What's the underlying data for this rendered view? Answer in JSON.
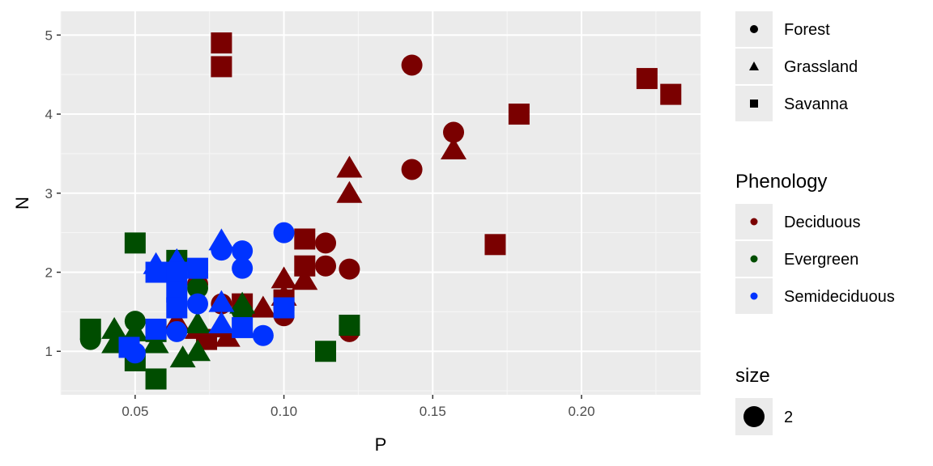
{
  "chart_data": {
    "type": "scatter",
    "xlabel": "P",
    "ylabel": "N",
    "xlim": [
      0.025,
      0.24
    ],
    "ylim": [
      0.45,
      5.3
    ],
    "x_ticks": [
      0.05,
      0.1,
      0.15,
      0.2
    ],
    "x_tick_labels": [
      "0.05",
      "0.10",
      "0.15",
      "0.20"
    ],
    "y_ticks": [
      1,
      2,
      3,
      4,
      5
    ],
    "y_tick_labels": [
      "1",
      "2",
      "3",
      "4",
      "5"
    ],
    "grid": true,
    "legend_placement": "right",
    "colors": {
      "Deciduous": "#7a0000",
      "Evergreen": "#004d00",
      "Semideciduous": "#0033ff",
      "panel": "#ebebeb",
      "grid": "#ffffff"
    },
    "legends": [
      {
        "title": "",
        "kind": "shape",
        "entries": [
          {
            "label": "Forest",
            "shape": "circle"
          },
          {
            "label": "Grassland",
            "shape": "triangle"
          },
          {
            "label": "Savanna",
            "shape": "square"
          }
        ]
      },
      {
        "title": "Phenology",
        "kind": "color",
        "entries": [
          {
            "label": "Deciduous",
            "color": "#7a0000"
          },
          {
            "label": "Evergreen",
            "color": "#004d00"
          },
          {
            "label": "Semideciduous",
            "color": "#0033ff"
          }
        ]
      },
      {
        "title": "size",
        "kind": "size",
        "entries": [
          {
            "label": "2"
          }
        ]
      }
    ],
    "points": [
      {
        "x": 0.079,
        "y": 4.9,
        "shape": "square",
        "phenology": "Deciduous"
      },
      {
        "x": 0.079,
        "y": 4.6,
        "shape": "square",
        "phenology": "Deciduous"
      },
      {
        "x": 0.143,
        "y": 4.62,
        "shape": "circle",
        "phenology": "Deciduous"
      },
      {
        "x": 0.222,
        "y": 4.45,
        "shape": "square",
        "phenology": "Deciduous"
      },
      {
        "x": 0.23,
        "y": 4.25,
        "shape": "square",
        "phenology": "Deciduous"
      },
      {
        "x": 0.179,
        "y": 4.0,
        "shape": "square",
        "phenology": "Deciduous"
      },
      {
        "x": 0.157,
        "y": 3.77,
        "shape": "circle",
        "phenology": "Deciduous"
      },
      {
        "x": 0.157,
        "y": 3.55,
        "shape": "triangle",
        "phenology": "Deciduous"
      },
      {
        "x": 0.122,
        "y": 3.32,
        "shape": "triangle",
        "phenology": "Deciduous"
      },
      {
        "x": 0.143,
        "y": 3.3,
        "shape": "circle",
        "phenology": "Deciduous"
      },
      {
        "x": 0.122,
        "y": 3.0,
        "shape": "triangle",
        "phenology": "Deciduous"
      },
      {
        "x": 0.171,
        "y": 2.35,
        "shape": "square",
        "phenology": "Deciduous"
      },
      {
        "x": 0.107,
        "y": 2.42,
        "shape": "square",
        "phenology": "Deciduous"
      },
      {
        "x": 0.114,
        "y": 2.37,
        "shape": "circle",
        "phenology": "Deciduous"
      },
      {
        "x": 0.107,
        "y": 2.08,
        "shape": "square",
        "phenology": "Deciduous"
      },
      {
        "x": 0.114,
        "y": 2.08,
        "shape": "circle",
        "phenology": "Deciduous"
      },
      {
        "x": 0.122,
        "y": 2.04,
        "shape": "circle",
        "phenology": "Deciduous"
      },
      {
        "x": 0.1,
        "y": 1.92,
        "shape": "triangle",
        "phenology": "Deciduous"
      },
      {
        "x": 0.107,
        "y": 1.9,
        "shape": "triangle",
        "phenology": "Deciduous"
      },
      {
        "x": 0.1,
        "y": 1.7,
        "shape": "triangle",
        "phenology": "Deciduous"
      },
      {
        "x": 0.1,
        "y": 1.65,
        "shape": "square",
        "phenology": "Deciduous"
      },
      {
        "x": 0.093,
        "y": 1.55,
        "shape": "triangle",
        "phenology": "Deciduous"
      },
      {
        "x": 0.086,
        "y": 1.6,
        "shape": "square",
        "phenology": "Deciduous"
      },
      {
        "x": 0.079,
        "y": 1.6,
        "shape": "circle",
        "phenology": "Deciduous"
      },
      {
        "x": 0.071,
        "y": 1.85,
        "shape": "circle",
        "phenology": "Deciduous"
      },
      {
        "x": 0.064,
        "y": 1.38,
        "shape": "triangle",
        "phenology": "Deciduous"
      },
      {
        "x": 0.071,
        "y": 1.28,
        "shape": "triangle",
        "phenology": "Deciduous"
      },
      {
        "x": 0.079,
        "y": 1.3,
        "shape": "triangle",
        "phenology": "Deciduous"
      },
      {
        "x": 0.086,
        "y": 1.3,
        "shape": "triangle",
        "phenology": "Deciduous"
      },
      {
        "x": 0.074,
        "y": 1.15,
        "shape": "square",
        "phenology": "Deciduous"
      },
      {
        "x": 0.081,
        "y": 1.18,
        "shape": "triangle",
        "phenology": "Deciduous"
      },
      {
        "x": 0.1,
        "y": 1.45,
        "shape": "circle",
        "phenology": "Deciduous"
      },
      {
        "x": 0.122,
        "y": 1.25,
        "shape": "circle",
        "phenology": "Deciduous"
      },
      {
        "x": 0.05,
        "y": 2.37,
        "shape": "square",
        "phenology": "Evergreen"
      },
      {
        "x": 0.064,
        "y": 2.15,
        "shape": "square",
        "phenology": "Evergreen"
      },
      {
        "x": 0.071,
        "y": 1.8,
        "shape": "circle",
        "phenology": "Evergreen"
      },
      {
        "x": 0.086,
        "y": 1.6,
        "shape": "triangle",
        "phenology": "Evergreen"
      },
      {
        "x": 0.086,
        "y": 1.5,
        "shape": "circle",
        "phenology": "Evergreen"
      },
      {
        "x": 0.05,
        "y": 1.38,
        "shape": "circle",
        "phenology": "Evergreen"
      },
      {
        "x": 0.035,
        "y": 1.28,
        "shape": "square",
        "phenology": "Evergreen"
      },
      {
        "x": 0.043,
        "y": 1.28,
        "shape": "triangle",
        "phenology": "Evergreen"
      },
      {
        "x": 0.05,
        "y": 1.25,
        "shape": "triangle",
        "phenology": "Evergreen"
      },
      {
        "x": 0.057,
        "y": 1.25,
        "shape": "square",
        "phenology": "Evergreen"
      },
      {
        "x": 0.071,
        "y": 1.35,
        "shape": "triangle",
        "phenology": "Evergreen"
      },
      {
        "x": 0.035,
        "y": 1.15,
        "shape": "circle",
        "phenology": "Evergreen"
      },
      {
        "x": 0.043,
        "y": 1.1,
        "shape": "triangle",
        "phenology": "Evergreen"
      },
      {
        "x": 0.057,
        "y": 1.1,
        "shape": "triangle",
        "phenology": "Evergreen"
      },
      {
        "x": 0.05,
        "y": 0.88,
        "shape": "square",
        "phenology": "Evergreen"
      },
      {
        "x": 0.066,
        "y": 0.92,
        "shape": "triangle",
        "phenology": "Evergreen"
      },
      {
        "x": 0.071,
        "y": 1.0,
        "shape": "triangle",
        "phenology": "Evergreen"
      },
      {
        "x": 0.057,
        "y": 0.65,
        "shape": "square",
        "phenology": "Evergreen"
      },
      {
        "x": 0.114,
        "y": 1.0,
        "shape": "square",
        "phenology": "Evergreen"
      },
      {
        "x": 0.122,
        "y": 1.33,
        "shape": "square",
        "phenology": "Evergreen"
      },
      {
        "x": 0.1,
        "y": 2.5,
        "shape": "circle",
        "phenology": "Semideciduous"
      },
      {
        "x": 0.079,
        "y": 2.4,
        "shape": "triangle",
        "phenology": "Semideciduous"
      },
      {
        "x": 0.079,
        "y": 2.28,
        "shape": "circle",
        "phenology": "Semideciduous"
      },
      {
        "x": 0.086,
        "y": 2.27,
        "shape": "circle",
        "phenology": "Semideciduous"
      },
      {
        "x": 0.057,
        "y": 2.1,
        "shape": "triangle",
        "phenology": "Semideciduous"
      },
      {
        "x": 0.064,
        "y": 2.15,
        "shape": "triangle",
        "phenology": "Semideciduous"
      },
      {
        "x": 0.057,
        "y": 2.0,
        "shape": "square",
        "phenology": "Semideciduous"
      },
      {
        "x": 0.064,
        "y": 2.0,
        "shape": "square",
        "phenology": "Semideciduous"
      },
      {
        "x": 0.071,
        "y": 2.05,
        "shape": "square",
        "phenology": "Semideciduous"
      },
      {
        "x": 0.086,
        "y": 2.05,
        "shape": "circle",
        "phenology": "Semideciduous"
      },
      {
        "x": 0.064,
        "y": 1.75,
        "shape": "square",
        "phenology": "Semideciduous"
      },
      {
        "x": 0.064,
        "y": 1.55,
        "shape": "square",
        "phenology": "Semideciduous"
      },
      {
        "x": 0.071,
        "y": 1.6,
        "shape": "circle",
        "phenology": "Semideciduous"
      },
      {
        "x": 0.079,
        "y": 1.62,
        "shape": "triangle",
        "phenology": "Semideciduous"
      },
      {
        "x": 0.1,
        "y": 1.55,
        "shape": "square",
        "phenology": "Semideciduous"
      },
      {
        "x": 0.057,
        "y": 1.28,
        "shape": "square",
        "phenology": "Semideciduous"
      },
      {
        "x": 0.064,
        "y": 1.25,
        "shape": "circle",
        "phenology": "Semideciduous"
      },
      {
        "x": 0.079,
        "y": 1.35,
        "shape": "triangle",
        "phenology": "Semideciduous"
      },
      {
        "x": 0.086,
        "y": 1.3,
        "shape": "square",
        "phenology": "Semideciduous"
      },
      {
        "x": 0.093,
        "y": 1.2,
        "shape": "circle",
        "phenology": "Semideciduous"
      },
      {
        "x": 0.048,
        "y": 1.05,
        "shape": "square",
        "phenology": "Semideciduous"
      },
      {
        "x": 0.05,
        "y": 0.98,
        "shape": "circle",
        "phenology": "Semideciduous"
      }
    ]
  }
}
